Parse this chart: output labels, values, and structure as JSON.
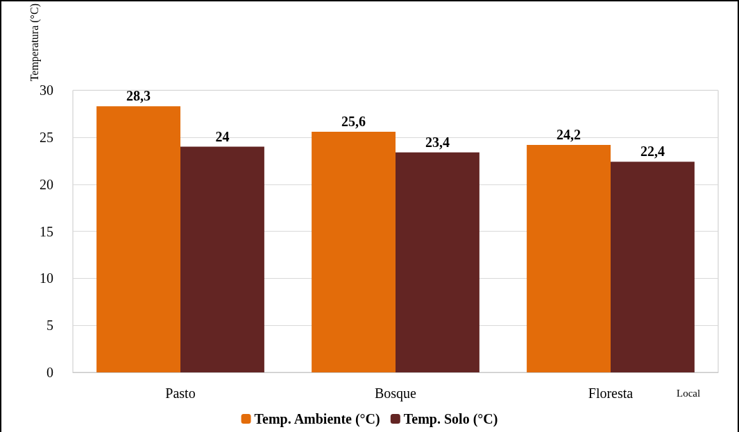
{
  "chart_data": {
    "type": "bar",
    "ylabel": "Temperatura (°C)",
    "xlabel": "Local",
    "categories": [
      "Pasto",
      "Bosque",
      "Floresta"
    ],
    "series": [
      {
        "name": "Temp. Ambiente (°C)",
        "color": "#e36c0a",
        "values": [
          28.3,
          25.6,
          24.2
        ],
        "value_labels": [
          "28,3",
          "25,6",
          "24,2"
        ]
      },
      {
        "name": "Temp. Solo (°C)",
        "color": "#632523",
        "values": [
          24,
          23.4,
          22.4
        ],
        "value_labels": [
          "24",
          "23,4",
          "22,4"
        ]
      }
    ],
    "ylim": [
      0,
      30
    ],
    "yticks": [
      0,
      5,
      10,
      15,
      20,
      25,
      30
    ],
    "grid": "y",
    "legend": "bottom"
  }
}
